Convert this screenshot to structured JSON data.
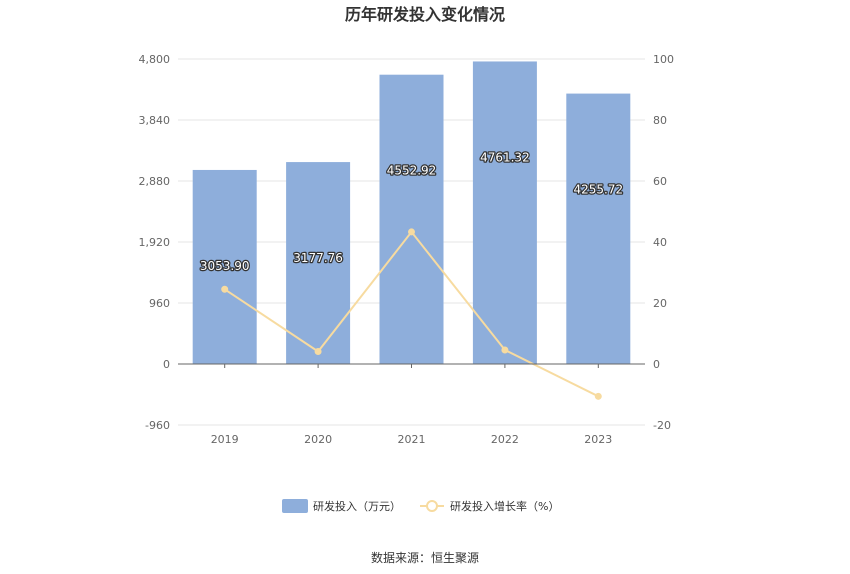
{
  "chart_data": {
    "type": "bar",
    "title": "历年研发投入变化情况",
    "categories": [
      "2019",
      "2020",
      "2021",
      "2022",
      "2023"
    ],
    "series": [
      {
        "name": "研发投入（万元）",
        "type": "bar",
        "axis": "left",
        "color": "#8eaedb",
        "values": [
          3053.9,
          3177.76,
          4552.92,
          4761.32,
          4255.72
        ],
        "labels": [
          "3053.90",
          "3177.76",
          "4552.92",
          "4761.32",
          "4255.72"
        ]
      },
      {
        "name": "研发投入增长率（%）",
        "type": "line",
        "axis": "right",
        "color": "#f7dba0",
        "values": [
          24.5,
          4.1,
          43.3,
          4.6,
          -10.6
        ]
      }
    ],
    "y_left": {
      "ylim": [
        -960,
        4800
      ],
      "ticks": [
        "-960",
        "0",
        "960",
        "1,920",
        "2,880",
        "3,840",
        "4,800"
      ],
      "tick_values": [
        -960,
        0,
        960,
        1920,
        2880,
        3840,
        4800
      ]
    },
    "y_right": {
      "ylim": [
        -20,
        100
      ],
      "ticks": [
        "-20",
        "0",
        "20",
        "40",
        "60",
        "80",
        "100"
      ],
      "tick_values": [
        -20,
        0,
        20,
        40,
        60,
        80,
        100
      ]
    },
    "grid": true,
    "legend_position": "bottom"
  },
  "source_text": "数据来源：恒生聚源"
}
